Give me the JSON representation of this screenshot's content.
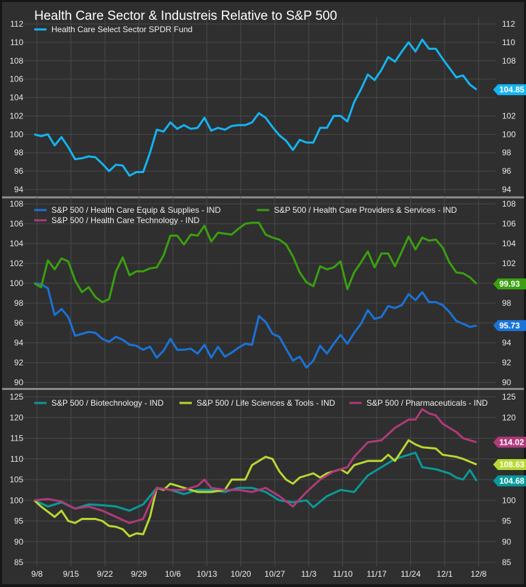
{
  "chart_data": [
    {
      "type": "line",
      "title": "Health Care Sector & Industreis Relative to S&P 500",
      "x_unit": "trading day index from 9/8",
      "xticks": [
        "9/8",
        "9/15",
        "9/22",
        "9/29",
        "10/6",
        "10/13",
        "10/20",
        "10/27",
        "11/3",
        "11/10",
        "11/17",
        "11/24",
        "12/1",
        "12/8"
      ],
      "ylim": [
        94,
        112
      ],
      "yticks": [
        94,
        96,
        98,
        100,
        102,
        104,
        106,
        108,
        110,
        112
      ],
      "legend": "top-left",
      "grid": true,
      "series": [
        {
          "name": "Health Care Select Sector SPDR Fund",
          "color": "#14b4f0",
          "last_label": "104.85",
          "values": [
            100,
            99.8,
            100,
            98.8,
            99.7,
            98.6,
            97.3,
            97.4,
            97.6,
            97.5,
            96.8,
            96,
            96.7,
            96.6,
            95.5,
            95.9,
            95.9,
            98,
            100.5,
            100.3,
            101.3,
            100.6,
            101,
            100.6,
            100.7,
            101.8,
            100.4,
            100.7,
            100.5,
            100.9,
            101,
            101,
            101.3,
            102.3,
            101.8,
            100.8,
            99.9,
            99.3,
            98.3,
            99.4,
            99.1,
            99.1,
            100.7,
            100.7,
            102,
            102,
            101.4,
            103.5,
            104.9,
            106.5,
            105.9,
            107,
            108.4,
            107.9,
            109,
            110,
            109,
            110.3,
            109.3,
            109.3,
            108.2,
            107.2,
            106.2,
            106.4,
            105.4,
            104.85
          ]
        }
      ]
    },
    {
      "type": "line",
      "ylim": [
        90,
        108
      ],
      "yticks": [
        90,
        92,
        94,
        96,
        98,
        100,
        102,
        104,
        106,
        108
      ],
      "legend": "top-left",
      "grid": true,
      "series": [
        {
          "name": "S&P 500 / Health Care Equip & Supplies - IND",
          "color": "#1a73d8",
          "last_label": "95.73",
          "values": [
            100,
            99.9,
            99.5,
            96.8,
            97.4,
            96.6,
            94.7,
            94.9,
            95.1,
            95,
            94.4,
            94.1,
            94.6,
            94.3,
            93.8,
            93.7,
            93.3,
            93.6,
            92.5,
            93.2,
            94.4,
            93.3,
            93.3,
            93.4,
            92.9,
            93.8,
            92.5,
            93.6,
            92.6,
            93,
            93.5,
            93.9,
            93.8,
            96.7,
            96.1,
            94.9,
            94.6,
            93.4,
            92.2,
            92.6,
            91.5,
            92.2,
            93.7,
            92.9,
            93.9,
            94.8,
            93.9,
            95,
            95.9,
            97.3,
            96.4,
            96.6,
            97.7,
            97.5,
            97.8,
            98.9,
            98.3,
            99.1,
            98.1,
            98.1,
            97.8,
            97.1,
            96.2,
            95.9,
            95.6,
            95.73
          ]
        },
        {
          "name": "S&P 500 / Health Care Providers & Services - IND",
          "color": "#3aa010",
          "last_label": "99.93",
          "values": [
            100,
            99.6,
            102.3,
            101.4,
            102.5,
            102.2,
            100.3,
            99.1,
            99.6,
            98.6,
            98.1,
            98.4,
            101.2,
            102.6,
            100.8,
            101.2,
            101.2,
            101.5,
            101.6,
            102.8,
            104.8,
            104.8,
            103.9,
            104.9,
            104.8,
            105.8,
            104.2,
            105.1,
            105,
            104.9,
            105.5,
            106,
            106.1,
            106.1,
            104.9,
            104.6,
            104.4,
            103.9,
            102.7,
            101.1,
            100.1,
            99.7,
            101.7,
            101.4,
            101.6,
            102.2,
            99.4,
            101.1,
            102.1,
            103.2,
            101.6,
            103,
            103,
            101.7,
            103.2,
            104.7,
            103.4,
            104.6,
            104.3,
            104.4,
            103.6,
            102.1,
            101.1,
            101,
            100.6,
            99.93
          ]
        },
        {
          "name": "S&P 500 / Health Care Technology - IND",
          "color": "#b03a7a",
          "last_label": null,
          "values": []
        }
      ]
    },
    {
      "type": "line",
      "ylim": [
        85,
        125
      ],
      "yticks": [
        85,
        90,
        95,
        100,
        105,
        110,
        115,
        120,
        125
      ],
      "legend": "top-left",
      "grid": true,
      "series": [
        {
          "name": "S&P 500 / Biotechnology - IND",
          "color": "#0a9a9a",
          "last_label": "104.68",
          "x": [
            0,
            2,
            4,
            6,
            8,
            10,
            12,
            14,
            16,
            18,
            20,
            22,
            24,
            26,
            28,
            30,
            32,
            34,
            36,
            38,
            40,
            41,
            43,
            45,
            47,
            49,
            51,
            53,
            55,
            56,
            57,
            59,
            61,
            62,
            63,
            64,
            65
          ],
          "values": [
            100,
            98.5,
            99.5,
            98,
            99,
            98.8,
            98.5,
            97.5,
            99,
            103,
            102.5,
            101.5,
            102.5,
            102.5,
            102,
            103,
            103,
            102,
            100,
            99.5,
            100,
            98.3,
            101,
            102.5,
            102,
            106,
            108,
            110,
            111,
            111.5,
            108,
            107.5,
            106.5,
            105.5,
            105,
            107.3,
            104.68
          ]
        },
        {
          "name": "S&P 500 / Life Sciences & Tools - IND",
          "color": "#b8d832",
          "last_label": "108.63",
          "x": [
            0,
            1,
            3,
            4,
            5,
            6,
            7,
            9,
            10,
            11,
            12,
            13,
            14,
            15,
            16,
            17,
            18,
            19,
            20,
            22,
            24,
            26,
            28,
            29,
            31,
            32,
            34,
            35,
            36,
            37,
            38,
            39,
            40,
            41,
            42,
            43,
            45,
            46,
            47,
            49,
            51,
            52,
            53,
            55,
            56,
            57,
            59,
            60,
            62,
            63,
            65
          ],
          "values": [
            100,
            98.5,
            96,
            97.5,
            95,
            94.5,
            95.5,
            95.5,
            95,
            93.8,
            93.6,
            93,
            91.3,
            92,
            91.8,
            96,
            103,
            102.5,
            104,
            103,
            102,
            102,
            102.5,
            105,
            105,
            108.5,
            110.5,
            110,
            107,
            105,
            104,
            105.5,
            106,
            106.5,
            105.5,
            106.5,
            107.5,
            106.5,
            108.5,
            109.5,
            109.5,
            111,
            109.5,
            114.5,
            113.5,
            112.8,
            112.5,
            111,
            110.5,
            110,
            108.63
          ]
        },
        {
          "name": "S&P 500 / Pharmaceuticals - IND",
          "color": "#b03a7a",
          "last_label": "114.02",
          "x": [
            0,
            2,
            4,
            6,
            8,
            10,
            12,
            14,
            16,
            18,
            20,
            22,
            24,
            25,
            26,
            28,
            30,
            32,
            34,
            36,
            38,
            40,
            42,
            44,
            46,
            47,
            49,
            51,
            52,
            53,
            55,
            56,
            57,
            58,
            59,
            60,
            61,
            62,
            63,
            65
          ],
          "values": [
            100,
            100.3,
            99.7,
            98,
            98.5,
            97.5,
            96,
            94.5,
            95.5,
            103,
            102.5,
            102.5,
            103.5,
            105,
            103,
            102.5,
            102.5,
            102,
            103,
            101,
            98.5,
            102,
            105,
            107,
            108,
            110.5,
            114,
            114.5,
            116,
            117.5,
            119.5,
            119.5,
            122,
            121,
            120.5,
            118.5,
            117.5,
            116.5,
            115,
            114.02
          ]
        }
      ]
    }
  ]
}
